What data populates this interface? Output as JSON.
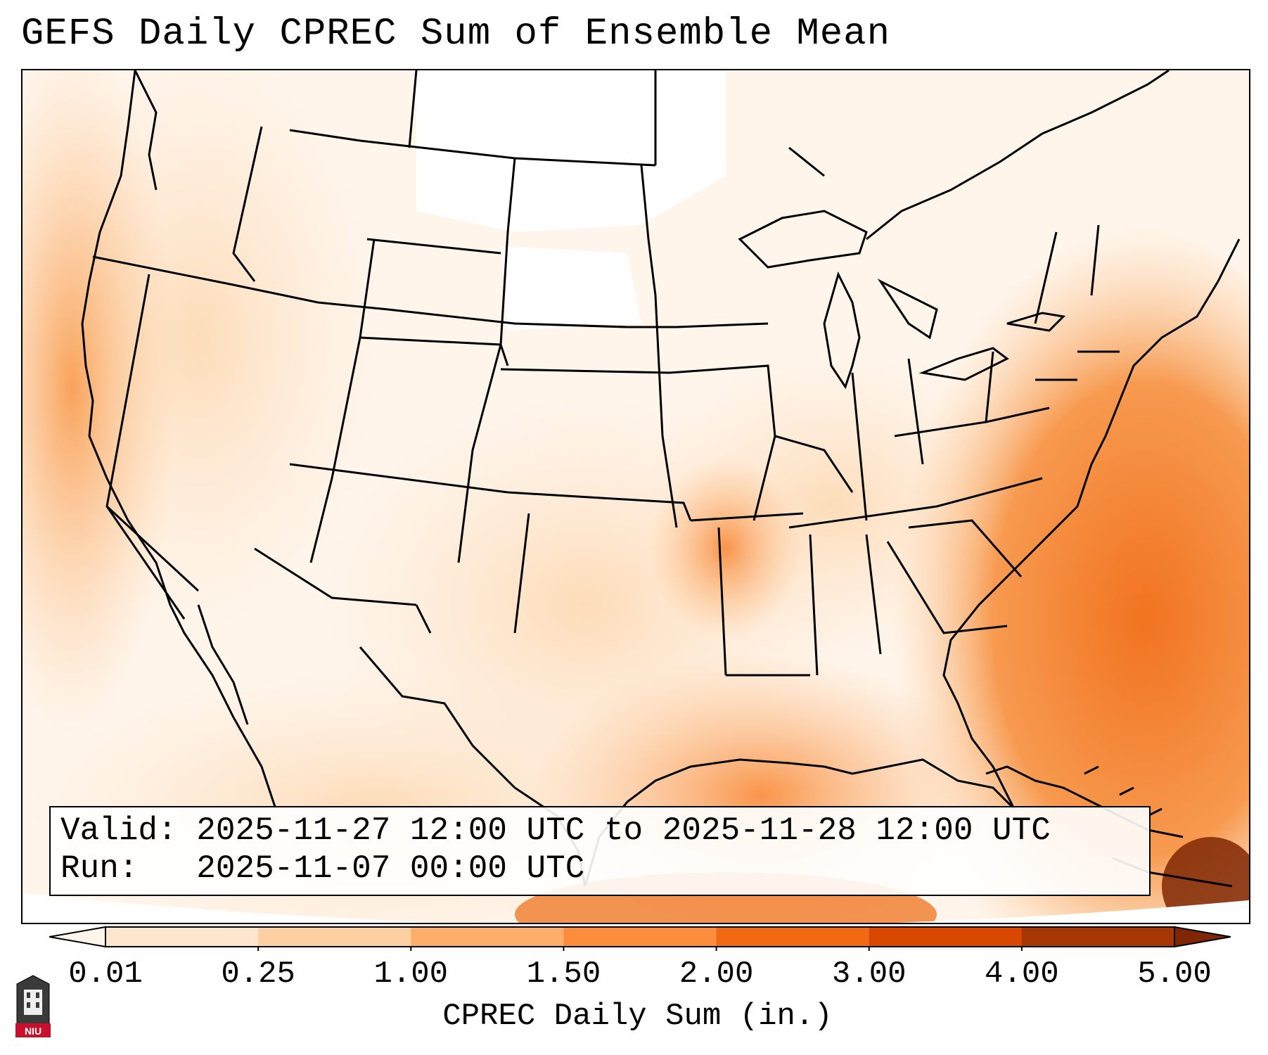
{
  "title": "GEFS Daily CPREC Sum of Ensemble Mean",
  "info": {
    "valid_label": "Valid:",
    "valid_value": "2025-11-27 12:00 UTC to 2025-11-28 12:00 UTC",
    "run_label": "Run:",
    "run_value": "2025-11-07 00:00 UTC"
  },
  "colorbar": {
    "label": "CPREC Daily Sum (in.)",
    "ticks": [
      "0.01",
      "0.25",
      "1.00",
      "1.50",
      "2.00",
      "3.00",
      "4.00",
      "5.00"
    ],
    "colors": [
      "#fff5eb",
      "#fee6ce",
      "#fdd0a2",
      "#fdae6b",
      "#fd8d3c",
      "#f16913",
      "#d94801",
      "#a63603",
      "#7f2704"
    ]
  },
  "logo": {
    "text": "NIU"
  }
}
